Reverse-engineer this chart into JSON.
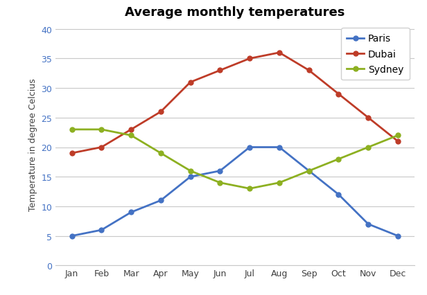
{
  "title": "Average monthly temperatures",
  "ylabel": "Temperature in degree Celcius",
  "months": [
    "Jan",
    "Feb",
    "Mar",
    "Apr",
    "May",
    "Jun",
    "Jul",
    "Aug",
    "Sep",
    "Oct",
    "Nov",
    "Dec"
  ],
  "series": [
    {
      "label": "Paris",
      "color": "#4472C4",
      "marker": "o",
      "values": [
        5,
        6,
        9,
        11,
        15,
        16,
        20,
        20,
        16,
        12,
        7,
        5
      ]
    },
    {
      "label": "Dubai",
      "color": "#BE3C28",
      "marker": "o",
      "values": [
        19,
        20,
        23,
        26,
        31,
        33,
        35,
        36,
        33,
        29,
        25,
        21
      ]
    },
    {
      "label": "Sydney",
      "color": "#8DB021",
      "marker": "o",
      "values": [
        23,
        23,
        22,
        19,
        16,
        14,
        13,
        14,
        16,
        18,
        20,
        22
      ]
    }
  ],
  "ylim": [
    0,
    41
  ],
  "yticks": [
    0,
    5,
    10,
    15,
    20,
    25,
    30,
    35,
    40
  ],
  "background_color": "#FFFFFF",
  "grid_color": "#C8C8C8",
  "title_fontsize": 13,
  "axis_label_fontsize": 9,
  "tick_fontsize": 9,
  "legend_fontsize": 10,
  "ytick_color": "#4472C4",
  "xtick_color": "#404040"
}
